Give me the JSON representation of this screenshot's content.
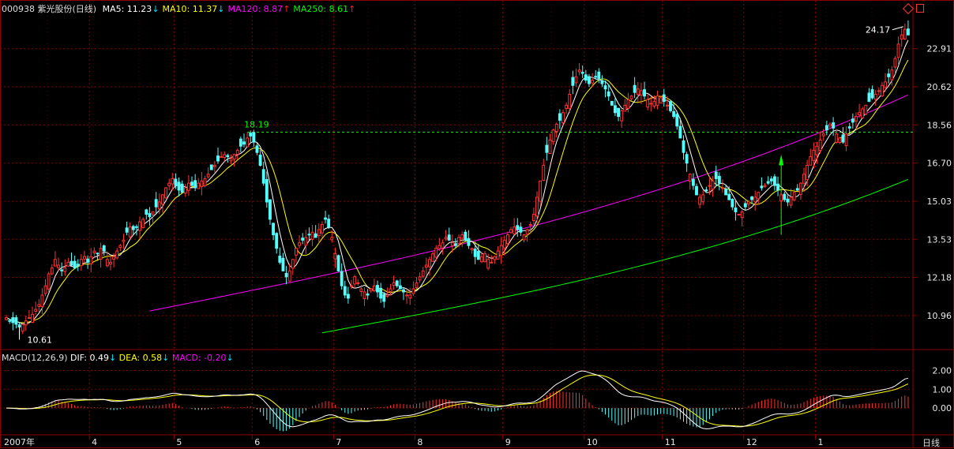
{
  "header": {
    "code": "000938",
    "name": "紫光股份",
    "period": "(日线)",
    "ma": [
      {
        "label": "MA5:",
        "value": "11.23",
        "arrow": "↓",
        "color": "#ffffff",
        "arrow_color": "#00e5ff"
      },
      {
        "label": "MA10:",
        "value": "11.37",
        "arrow": "↓",
        "color": "#ffff00",
        "arrow_color": "#00e5ff"
      },
      {
        "label": "MA120:",
        "value": "8.87",
        "arrow": "↑",
        "color": "#ff00ff",
        "arrow_color": "#ff2020"
      },
      {
        "label": "MA250:",
        "value": "8.61",
        "arrow": "↑",
        "color": "#00ff00",
        "arrow_color": "#ff2020"
      }
    ]
  },
  "macd_header": {
    "title": "MACD(12,26,9)",
    "dif_label": "DIF:",
    "dif_value": "0.49",
    "dif_arrow": "↓",
    "dea_label": "DEA:",
    "dea_value": "0.58",
    "dea_arrow": "↓",
    "macd_label": "MACD:",
    "macd_value": "-0.20",
    "macd_arrow": "↓"
  },
  "bottom_right_label": "日线",
  "colors": {
    "up": "#ff3232",
    "down": "#54fcfc",
    "grid": "#8b0000",
    "ma5": "#ffffff",
    "ma10": "#ffff00",
    "ma120": "#ff00ff",
    "ma250": "#00ff00",
    "dif": "#ffffff",
    "dea": "#ffff00",
    "axis_text": "#e8e8e8"
  },
  "chart_data": [
    {
      "type": "candlestick",
      "x_ticks": [
        "2007年",
        "4",
        "5",
        "6",
        "7",
        "8",
        "9",
        "10",
        "11",
        "12",
        "1"
      ],
      "y_ticks": [
        "10.96",
        "12.18",
        "13.53",
        "15.03",
        "16.70",
        "18.56",
        "20.62",
        "22.91"
      ],
      "y_scale": "log",
      "ylim": [
        10.0,
        25.2
      ],
      "annotations": {
        "high_marker": "24.17",
        "low_marker": "10.61",
        "reference_line": "18.19"
      },
      "close": [
        10.9,
        10.8,
        10.75,
        10.7,
        10.62,
        10.7,
        10.8,
        10.9,
        11,
        11.15,
        11.3,
        11.6,
        11.9,
        12.3,
        12.5,
        12.8,
        12.6,
        12.4,
        12.5,
        12.7,
        12.6,
        12.5,
        12.6,
        12.8,
        12.9,
        12.7,
        12.9,
        13.1,
        13.0,
        13.2,
        13.1,
        12.8,
        12.7,
        12.9,
        13.1,
        13.3,
        13.5,
        13.8,
        14.0,
        13.9,
        14.0,
        14.2,
        14.3,
        14.5,
        14.4,
        14.6,
        14.8,
        15.0,
        15.3,
        15.6,
        15.8,
        16.0,
        15.7,
        15.5,
        15.4,
        15.6,
        15.8,
        15.7,
        15.6,
        15.8,
        15.9,
        16.0,
        16.2,
        16.4,
        16.6,
        16.8,
        17.0,
        17.1,
        17.0,
        16.9,
        17.1,
        17.3,
        17.5,
        17.6,
        17.9,
        18.0,
        17.7,
        17.2,
        16.6,
        15.8,
        15.0,
        14.3,
        13.7,
        13.2,
        12.7,
        12.4,
        12.2,
        12.4,
        12.8,
        13.2,
        13.4,
        13.5,
        13.6,
        13.7,
        13.8,
        13.6,
        13.9,
        14.1,
        14.3,
        14.0,
        13.6,
        13.0,
        12.4,
        11.9,
        11.6,
        11.5,
        11.9,
        12.2,
        12.0,
        11.8,
        11.7,
        11.6,
        11.8,
        11.9,
        11.7,
        11.5,
        11.4,
        11.6,
        11.8,
        12.0,
        11.9,
        11.8,
        11.7,
        11.6,
        11.6,
        11.8,
        12.0,
        12.2,
        12.4,
        12.6,
        12.8,
        13.0,
        13.2,
        13.3,
        13.4,
        13.6,
        13.5,
        13.4,
        13.3,
        13.6,
        13.7,
        13.5,
        13.3,
        13.2,
        12.9,
        12.8,
        12.9,
        13.0,
        12.8,
        12.7,
        12.9,
        13.1,
        13.3,
        13.5,
        13.7,
        13.9,
        14.0,
        13.9,
        13.8,
        13.7,
        13.9,
        14.1,
        14.5,
        15.2,
        15.9,
        16.6,
        17.2,
        17.8,
        18.3,
        18.6,
        18.8,
        19.2,
        19.6,
        20.2,
        20.7,
        21.2,
        21.6,
        21.4,
        21.0,
        20.8,
        21.0,
        21.2,
        21.1,
        20.8,
        20.5,
        20.1,
        19.6,
        19.2,
        19.0,
        19.3,
        19.6,
        19.9,
        20.1,
        20.3,
        20.5,
        20.4,
        20.1,
        19.9,
        19.7,
        19.8,
        20.1,
        20.0,
        19.8,
        19.6,
        19.3,
        19.0,
        18.5,
        17.9,
        17.2,
        16.7,
        16.2,
        15.7,
        15.3,
        15.2,
        15.3,
        15.5,
        15.7,
        15.9,
        16.0,
        15.8,
        15.6,
        15.3,
        15.1,
        14.8,
        14.6,
        14.5,
        14.6,
        14.8,
        15.0,
        15.1,
        15.2,
        15.4,
        15.6,
        15.7,
        15.8,
        15.9,
        15.7,
        15.5,
        15.3,
        15.1,
        15.0,
        15.2,
        15.4,
        15.5,
        15.8,
        16.2,
        16.6,
        17.0,
        17.3,
        17.5,
        17.8,
        18.1,
        18.3,
        18.6,
        18.4,
        18.1,
        17.9,
        17.7,
        18.1,
        18.4,
        18.7,
        19.0,
        19.2,
        19.4,
        19.6,
        19.8,
        20.0,
        20.2,
        20.4,
        20.7,
        20.9,
        21.2,
        21.6,
        22.3,
        23.2,
        23.8,
        24.17,
        23.8
      ],
      "ma120_start_index": 44,
      "ma250_start_index": 97
    },
    {
      "type": "macd",
      "title": "MACD(12,26,9)",
      "y_ticks": [
        "2.00",
        "1.00",
        "0.00"
      ],
      "ylim": [
        -1.3,
        2.4
      ]
    }
  ]
}
